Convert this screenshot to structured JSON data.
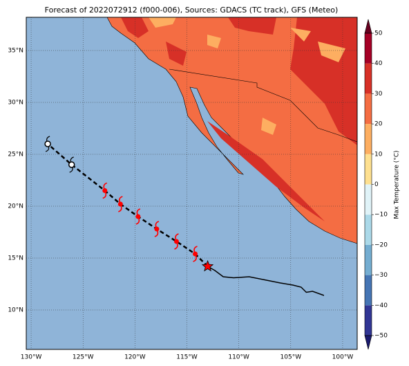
{
  "map": {
    "title": "Forecast of 2022072912 (f000-006), Sources: GDACS (TC track), GFS (Meteo)",
    "lonlim": [
      -130.47,
      -98.6
    ],
    "latlim": [
      6.2,
      38.2
    ],
    "lonticks": [
      {
        "value": -130,
        "label": "130°W"
      },
      {
        "value": -125,
        "label": "125°W"
      },
      {
        "value": -120,
        "label": "120°W"
      },
      {
        "value": -115,
        "label": "115°W"
      },
      {
        "value": -110,
        "label": "110°W"
      },
      {
        "value": -105,
        "label": "105°W"
      },
      {
        "value": -100,
        "label": "100°W"
      }
    ],
    "latticks": [
      {
        "value": 10,
        "label": "10°N"
      },
      {
        "value": 15,
        "label": "15°N"
      },
      {
        "value": 20,
        "label": "20°N"
      },
      {
        "value": 25,
        "label": "25°N"
      },
      {
        "value": 30,
        "label": "30°N"
      },
      {
        "value": 35,
        "label": "35°N"
      }
    ],
    "past_track": {
      "color": "#000000",
      "lon": [
        -113,
        -112.3,
        -111.5,
        -110.5,
        -109,
        -107.5,
        -106,
        -104.8,
        -104,
        -103.5,
        -102.9,
        -101.8
      ],
      "lat": [
        14.2,
        13.8,
        13.2,
        13.1,
        13.2,
        12.9,
        12.6,
        12.4,
        12.2,
        11.7,
        11.8,
        11.4
      ]
    },
    "forecast_track": {
      "color": "#000000",
      "marker_color": "#ff0000",
      "lon": [
        -113,
        -114.2,
        -116,
        -117.9,
        -119.7,
        -121.4,
        -122.9,
        -126.1,
        -128.4
      ],
      "lat": [
        14.2,
        15.4,
        16.6,
        17.8,
        19,
        20.2,
        21.5,
        24,
        26
      ],
      "symbols": [
        "star",
        "storm",
        "storm",
        "storm",
        "storm",
        "storm",
        "storm",
        "low",
        "low"
      ]
    },
    "colorbar": {
      "label": "Max Temperature (°C)",
      "lim": [
        -50,
        50
      ],
      "ticks": [
        {
          "value": -50,
          "label": "−50"
        },
        {
          "value": -40,
          "label": "−40"
        },
        {
          "value": -30,
          "label": "−30"
        },
        {
          "value": -20,
          "label": "−20"
        },
        {
          "value": -10,
          "label": "−10"
        },
        0,
        10,
        20,
        30,
        40,
        50
      ],
      "colors": [
        "#313695",
        "#4575b4",
        "#74add1",
        "#abd9e9",
        "#e0f3f8",
        "#fee090",
        "#fdae61",
        "#f46d43",
        "#d73027",
        "#a50026"
      ],
      "under": "#1a1a6e",
      "over": "#67001f"
    }
  }
}
